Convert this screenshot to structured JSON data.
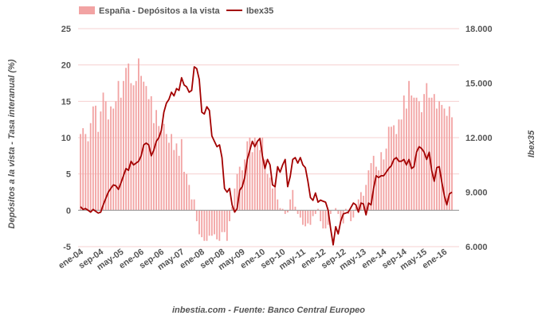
{
  "chart_data": {
    "type": "bar+line",
    "legend": {
      "placement": "top",
      "entries": [
        "España - Depósitos a la vista",
        "Ibex35"
      ]
    },
    "ylabel_left": "Depósitos a la vista - Tasa interanual (%)",
    "ylabel_right": "Ibex35",
    "footer": "inbestia.com - Fuente: Banco Central Europeo",
    "ylim_left": [
      -5,
      25
    ],
    "yticks_left": [
      "25",
      "20",
      "15",
      "10",
      "5",
      "0",
      "-5"
    ],
    "ylim_right": [
      6000,
      18000
    ],
    "yticks_right": [
      "18.000",
      "15.000",
      "12.000",
      "9.000",
      "6.000"
    ],
    "grid": true,
    "x_start": "2004-01",
    "x_end": "2016-04",
    "xtick_labels": [
      "ene-04",
      "sep-04",
      "may-05",
      "ene-06",
      "sep-06",
      "may-07",
      "ene-08",
      "sep-08",
      "may-09",
      "ene-10",
      "sep-10",
      "may-11",
      "ene-12",
      "sep-12",
      "may-13",
      "ene-14",
      "sep-14",
      "may-15",
      "ene-16"
    ],
    "colors": {
      "bars": "#f2a3a3",
      "line": "#a30000",
      "grid": "#f6d0d0",
      "zero": "#999999"
    },
    "series": [
      {
        "name": "España - Depósitos a la vista",
        "type": "bar",
        "axis": "left",
        "values": [
          10.5,
          11.3,
          10.5,
          9.5,
          12.0,
          14.3,
          14.4,
          10.8,
          13.6,
          16.2,
          15.0,
          12.5,
          14.3,
          14.0,
          15.0,
          17.8,
          15.5,
          17.8,
          19.6,
          20.2,
          17.5,
          17.2,
          17.8,
          20.9,
          18.5,
          17.7,
          17.1,
          15.3,
          15.7,
          12.0,
          13.8,
          11.6,
          10.8,
          11.9,
          10.5,
          9.3,
          10.5,
          8.3,
          9.2,
          7.5,
          9.8,
          5.3,
          5.0,
          3.5,
          1.5,
          1.5,
          -1.5,
          -3.3,
          -3.7,
          -4.2,
          -4.2,
          -3.5,
          -3.5,
          -3.3,
          -4.0,
          -4.2,
          -3.0,
          -3.0,
          -4.2,
          -1.5,
          0.5,
          3.0,
          5.0,
          6.0,
          5.5,
          7.0,
          9.5,
          10.0,
          8.0,
          10.0,
          9.5,
          8.3,
          10.0,
          7.0,
          5.0,
          4.5,
          3.0,
          3.8,
          1.5,
          0.3,
          0.2,
          -0.5,
          -0.3,
          1.5,
          2.8,
          0.5,
          -0.5,
          -1.0,
          -2.0,
          -2.2,
          -1.8,
          -2.0,
          -0.8,
          -0.5,
          0.2,
          -1.5,
          -2.5,
          -2.5,
          -2.0,
          -0.5,
          0.0,
          0.3,
          -0.5,
          -1.5,
          -1.8,
          0.2,
          -0.5,
          -1.5,
          -1.0,
          0.5,
          1.5,
          2.5,
          2.0,
          3.5,
          5.5,
          6.5,
          7.5,
          6.0,
          5.5,
          8.0,
          7.0,
          8.5,
          11.5,
          11.5,
          11.7,
          10.5,
          12.5,
          12.5,
          15.8,
          14.0,
          17.8,
          15.8,
          15.5,
          15.5,
          15.0,
          13.5,
          16.0,
          17.5,
          15.5,
          15.5,
          16.0,
          14.0,
          15.0,
          14.5,
          14.0,
          13.0,
          14.3,
          12.8
        ]
      },
      {
        "name": "Ibex35",
        "type": "line",
        "axis": "right",
        "values": [
          8200,
          8050,
          8100,
          8000,
          7900,
          8050,
          7950,
          7850,
          7900,
          8300,
          8650,
          9000,
          9200,
          9400,
          9350,
          9150,
          9500,
          9900,
          10300,
          10200,
          10700,
          10500,
          10600,
          10700,
          11000,
          11600,
          11700,
          11600,
          11000,
          11300,
          11800,
          12000,
          12400,
          13400,
          13900,
          14100,
          14500,
          14300,
          14700,
          14600,
          15300,
          14900,
          14800,
          14500,
          14600,
          15900,
          15800,
          15200,
          13400,
          13300,
          13700,
          13500,
          12100,
          11800,
          11500,
          11600,
          10900,
          9200,
          9000,
          9200,
          8300,
          7900,
          8100,
          9100,
          9300,
          9800,
          10800,
          11300,
          11800,
          11500,
          11800,
          11950,
          11000,
          10300,
          10800,
          10500,
          9400,
          9300,
          10400,
          10100,
          10500,
          10800,
          9300,
          9860,
          10800,
          10900,
          10600,
          10900,
          10500,
          10350,
          9600,
          8700,
          8550,
          8950,
          8450,
          8560,
          8500,
          8450,
          8000,
          7000,
          6100,
          7100,
          6700,
          7400,
          7800,
          7850,
          7900,
          8150,
          8400,
          8300,
          7900,
          8400,
          8350,
          7750,
          8400,
          8300,
          9200,
          9900,
          9800,
          9900,
          9900,
          10100,
          10300,
          10450,
          10800,
          10900,
          10700,
          10700,
          10800,
          10500,
          10800,
          10300,
          10400,
          11200,
          11500,
          11400,
          11200,
          10800,
          11200,
          10200,
          9600,
          10350,
          10400,
          9550,
          8800,
          8300,
          8900,
          9000
        ]
      }
    ]
  }
}
